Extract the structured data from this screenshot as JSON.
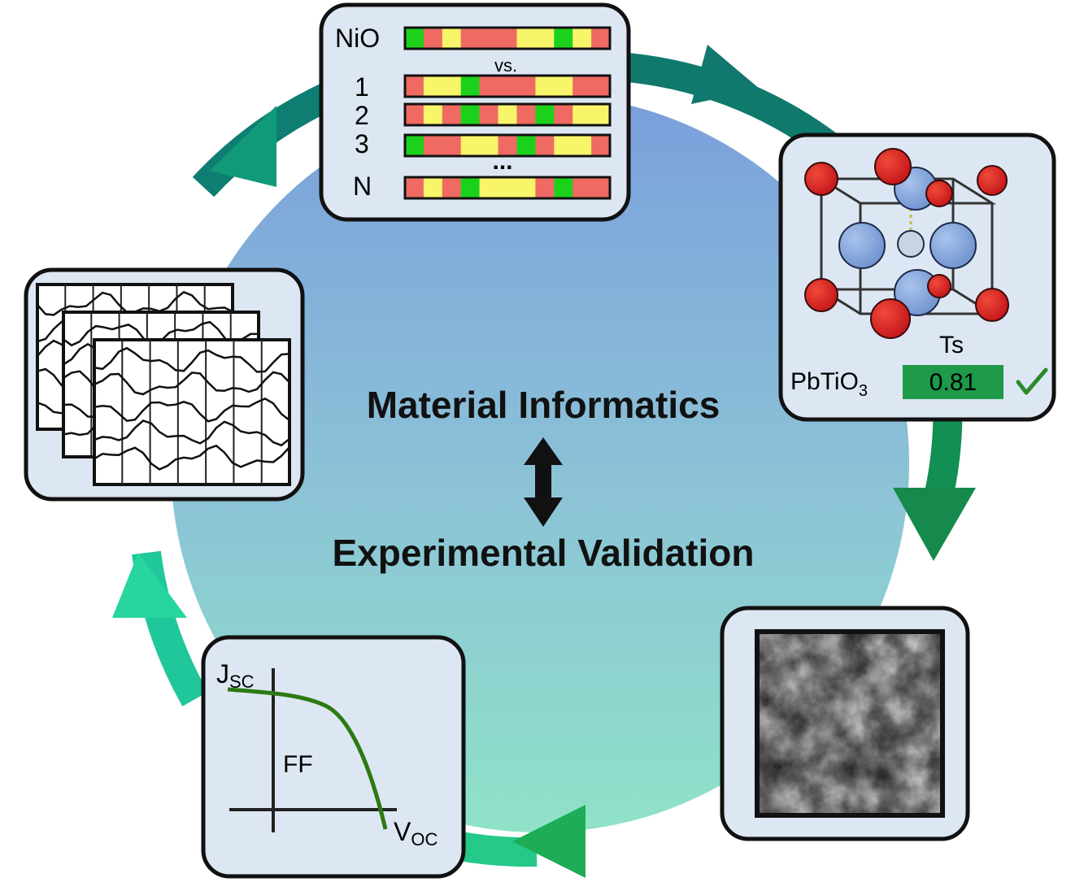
{
  "center": {
    "top_text": "Material Informatics",
    "bottom_text": "Experimental Validation"
  },
  "fingerprint_panel": {
    "reference_label": "NiO",
    "vs_label": "vs.",
    "rows": [
      "1",
      "2",
      "3",
      "N"
    ],
    "ellipsis": "...",
    "colors": {
      "red": "#ee6a62",
      "yellow": "#f8f56a",
      "green": "#1bd11b"
    }
  },
  "structure_panel": {
    "descriptor": "Ts",
    "compound_main": "PbTiO",
    "compound_sub": "3",
    "score": "0.81",
    "check_icon": "check-icon",
    "atom_colors": {
      "red": "#d92020",
      "blue": "#7b9fd6"
    }
  },
  "jv_panel": {
    "jsc_main": "J",
    "jsc_sub": "SC",
    "ff": "FF",
    "voc_main": "V",
    "voc_sub": "OC",
    "curve_color": "#2b7a12"
  },
  "sem_panel": {
    "image": "sem-micrograph"
  },
  "spectra_panel": {
    "image": "stacked-spectra"
  },
  "cycle_colors": {
    "light": "#2fe3ad",
    "mid": "#1aa562",
    "dark": "#12706b"
  }
}
